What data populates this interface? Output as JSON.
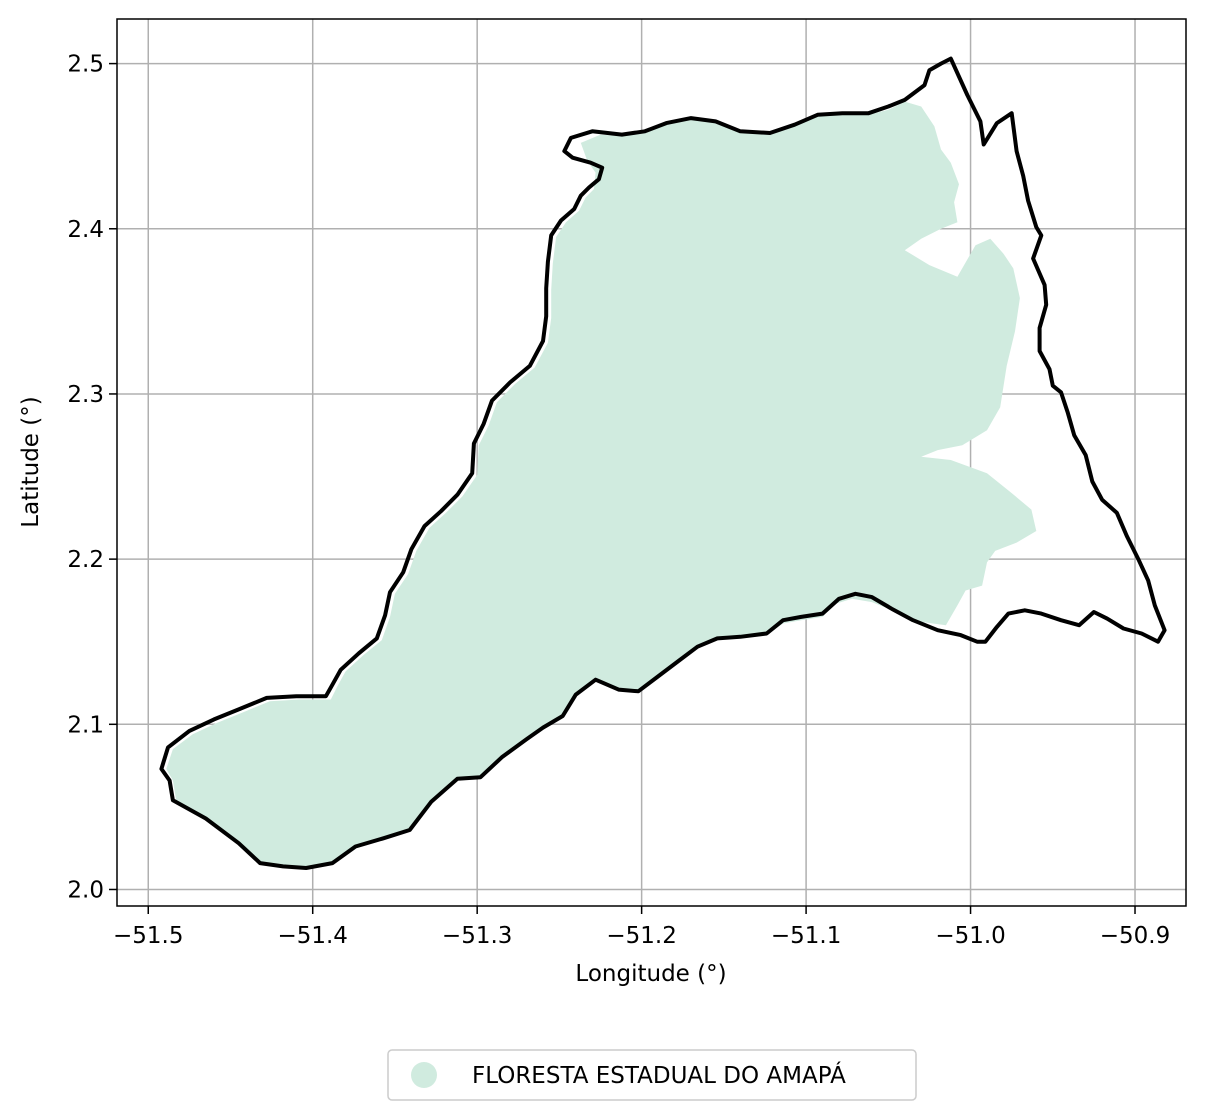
{
  "chart_data": {
    "type": "map",
    "xlabel": "Longitude (°)",
    "ylabel": "Latitude (°)",
    "xlim": [
      -51.519,
      -50.869
    ],
    "ylim": [
      1.99,
      2.527
    ],
    "x_ticks": [
      {
        "value": -51.5,
        "label": "−51.5"
      },
      {
        "value": -51.4,
        "label": "−51.4"
      },
      {
        "value": -51.3,
        "label": "−51.3"
      },
      {
        "value": -51.2,
        "label": "−51.2"
      },
      {
        "value": -51.1,
        "label": "−51.1"
      },
      {
        "value": -51.0,
        "label": "−51.0"
      },
      {
        "value": -50.9,
        "label": "−50.9"
      }
    ],
    "y_ticks": [
      {
        "value": 2.0,
        "label": "2.0"
      },
      {
        "value": 2.1,
        "label": "2.1"
      },
      {
        "value": 2.2,
        "label": "2.2"
      },
      {
        "value": 2.3,
        "label": "2.3"
      },
      {
        "value": 2.4,
        "label": "2.4"
      },
      {
        "value": 2.5,
        "label": "2.5"
      }
    ],
    "grid": true,
    "legend": {
      "placement": "bottom-center",
      "entries": [
        {
          "name": "FLORESTA ESTADUAL DO AMAPÁ",
          "color": "#d0ebdf"
        }
      ]
    },
    "boundary_color": "#000000",
    "fill_color": "#d0ebdf",
    "boundary": [
      [
        -51.243,
        2.455
      ],
      [
        -51.23,
        2.459
      ],
      [
        -51.212,
        2.457
      ],
      [
        -51.198,
        2.459
      ],
      [
        -51.185,
        2.464
      ],
      [
        -51.17,
        2.467
      ],
      [
        -51.155,
        2.465
      ],
      [
        -51.14,
        2.459
      ],
      [
        -51.122,
        2.458
      ],
      [
        -51.107,
        2.463
      ],
      [
        -51.093,
        2.469
      ],
      [
        -51.078,
        2.47
      ],
      [
        -51.062,
        2.47
      ],
      [
        -51.05,
        2.474
      ],
      [
        -51.04,
        2.478
      ],
      [
        -51.028,
        2.487
      ],
      [
        -51.025,
        2.496
      ],
      [
        -51.018,
        2.5
      ],
      [
        -51.012,
        2.503
      ],
      [
        -51.002,
        2.481
      ],
      [
        -50.994,
        2.465
      ],
      [
        -50.992,
        2.451
      ],
      [
        -50.984,
        2.464
      ],
      [
        -50.975,
        2.47
      ],
      [
        -50.972,
        2.447
      ],
      [
        -50.968,
        2.432
      ],
      [
        -50.965,
        2.417
      ],
      [
        -50.96,
        2.401
      ],
      [
        -50.957,
        2.396
      ],
      [
        -50.962,
        2.382
      ],
      [
        -50.955,
        2.366
      ],
      [
        -50.954,
        2.354
      ],
      [
        -50.958,
        2.34
      ],
      [
        -50.958,
        2.326
      ],
      [
        -50.952,
        2.315
      ],
      [
        -50.95,
        2.305
      ],
      [
        -50.945,
        2.301
      ],
      [
        -50.941,
        2.289
      ],
      [
        -50.937,
        2.275
      ],
      [
        -50.93,
        2.263
      ],
      [
        -50.926,
        2.247
      ],
      [
        -50.92,
        2.236
      ],
      [
        -50.911,
        2.228
      ],
      [
        -50.905,
        2.214
      ],
      [
        -50.898,
        2.2
      ],
      [
        -50.892,
        2.187
      ],
      [
        -50.888,
        2.172
      ],
      [
        -50.882,
        2.157
      ],
      [
        -50.886,
        2.15
      ],
      [
        -50.896,
        2.155
      ],
      [
        -50.907,
        2.158
      ],
      [
        -50.917,
        2.164
      ],
      [
        -50.925,
        2.168
      ],
      [
        -50.934,
        2.16
      ],
      [
        -50.945,
        2.163
      ],
      [
        -50.957,
        2.167
      ],
      [
        -50.967,
        2.169
      ],
      [
        -50.977,
        2.167
      ],
      [
        -50.984,
        2.159
      ],
      [
        -50.991,
        2.15
      ],
      [
        -50.996,
        2.15
      ],
      [
        -51.006,
        2.154
      ],
      [
        -51.02,
        2.157
      ],
      [
        -51.035,
        2.163
      ],
      [
        -51.048,
        2.17
      ],
      [
        -51.06,
        2.177
      ],
      [
        -51.07,
        2.179
      ],
      [
        -51.08,
        2.176
      ],
      [
        -51.09,
        2.167
      ],
      [
        -51.103,
        2.165
      ],
      [
        -51.114,
        2.163
      ],
      [
        -51.124,
        2.155
      ],
      [
        -51.14,
        2.153
      ],
      [
        -51.154,
        2.152
      ],
      [
        -51.166,
        2.147
      ],
      [
        -51.178,
        2.138
      ],
      [
        -51.19,
        2.129
      ],
      [
        -51.202,
        2.12
      ],
      [
        -51.214,
        2.121
      ],
      [
        -51.228,
        2.127
      ],
      [
        -51.24,
        2.118
      ],
      [
        -51.248,
        2.105
      ],
      [
        -51.26,
        2.098
      ],
      [
        -51.27,
        2.091
      ],
      [
        -51.285,
        2.08
      ],
      [
        -51.298,
        2.068
      ],
      [
        -51.312,
        2.067
      ],
      [
        -51.328,
        2.053
      ],
      [
        -51.341,
        2.036
      ],
      [
        -51.357,
        2.031
      ],
      [
        -51.374,
        2.026
      ],
      [
        -51.388,
        2.016
      ],
      [
        -51.404,
        2.013
      ],
      [
        -51.418,
        2.014
      ],
      [
        -51.432,
        2.016
      ],
      [
        -51.445,
        2.028
      ],
      [
        -51.465,
        2.043
      ],
      [
        -51.485,
        2.054
      ],
      [
        -51.487,
        2.066
      ],
      [
        -51.492,
        2.073
      ],
      [
        -51.488,
        2.086
      ],
      [
        -51.475,
        2.096
      ],
      [
        -51.46,
        2.103
      ],
      [
        -51.445,
        2.109
      ],
      [
        -51.428,
        2.116
      ],
      [
        -51.41,
        2.117
      ],
      [
        -51.392,
        2.117
      ],
      [
        -51.388,
        2.124
      ],
      [
        -51.383,
        2.133
      ],
      [
        -51.372,
        2.143
      ],
      [
        -51.361,
        2.152
      ],
      [
        -51.356,
        2.166
      ],
      [
        -51.353,
        2.18
      ],
      [
        -51.345,
        2.192
      ],
      [
        -51.34,
        2.206
      ],
      [
        -51.332,
        2.22
      ],
      [
        -51.322,
        2.229
      ],
      [
        -51.312,
        2.239
      ],
      [
        -51.303,
        2.252
      ],
      [
        -51.302,
        2.27
      ],
      [
        -51.296,
        2.282
      ],
      [
        -51.291,
        2.296
      ],
      [
        -51.28,
        2.307
      ],
      [
        -51.268,
        2.317
      ],
      [
        -51.26,
        2.332
      ],
      [
        -51.258,
        2.347
      ],
      [
        -51.258,
        2.364
      ],
      [
        -51.257,
        2.38
      ],
      [
        -51.255,
        2.396
      ],
      [
        -51.249,
        2.405
      ],
      [
        -51.241,
        2.412
      ],
      [
        -51.237,
        2.42
      ],
      [
        -51.232,
        2.425
      ],
      [
        -51.226,
        2.43
      ],
      [
        -51.224,
        2.437
      ],
      [
        -51.231,
        2.44
      ],
      [
        -51.242,
        2.443
      ],
      [
        -51.247,
        2.447
      ],
      [
        -51.243,
        2.455
      ]
    ],
    "forest_cover": [
      [
        -51.237,
        2.452
      ],
      [
        -51.225,
        2.457
      ],
      [
        -51.212,
        2.456
      ],
      [
        -51.198,
        2.458
      ],
      [
        -51.185,
        2.463
      ],
      [
        -51.17,
        2.466
      ],
      [
        -51.155,
        2.464
      ],
      [
        -51.14,
        2.458
      ],
      [
        -51.122,
        2.457
      ],
      [
        -51.107,
        2.462
      ],
      [
        -51.093,
        2.468
      ],
      [
        -51.078,
        2.469
      ],
      [
        -51.062,
        2.469
      ],
      [
        -51.05,
        2.472
      ],
      [
        -51.04,
        2.477
      ],
      [
        -51.03,
        2.474
      ],
      [
        -51.022,
        2.462
      ],
      [
        -51.018,
        2.448
      ],
      [
        -51.012,
        2.44
      ],
      [
        -51.007,
        2.427
      ],
      [
        -51.01,
        2.416
      ],
      [
        -51.008,
        2.404
      ],
      [
        -51.018,
        2.4
      ],
      [
        -51.03,
        2.394
      ],
      [
        -51.04,
        2.387
      ],
      [
        -51.025,
        2.378
      ],
      [
        -51.008,
        2.371
      ],
      [
        -50.997,
        2.39
      ],
      [
        -50.988,
        2.394
      ],
      [
        -50.98,
        2.385
      ],
      [
        -50.974,
        2.376
      ],
      [
        -50.97,
        2.358
      ],
      [
        -50.973,
        2.338
      ],
      [
        -50.978,
        2.317
      ],
      [
        -50.982,
        2.292
      ],
      [
        -50.99,
        2.278
      ],
      [
        -51.005,
        2.269
      ],
      [
        -51.02,
        2.266
      ],
      [
        -51.03,
        2.262
      ],
      [
        -51.012,
        2.26
      ],
      [
        -50.99,
        2.252
      ],
      [
        -50.975,
        2.24
      ],
      [
        -50.963,
        2.23
      ],
      [
        -50.96,
        2.217
      ],
      [
        -50.972,
        2.21
      ],
      [
        -50.985,
        2.205
      ],
      [
        -50.99,
        2.198
      ],
      [
        -50.993,
        2.184
      ],
      [
        -51.003,
        2.181
      ],
      [
        -51.008,
        2.172
      ],
      [
        -51.015,
        2.16
      ],
      [
        -51.03,
        2.162
      ],
      [
        -51.045,
        2.168
      ],
      [
        -51.06,
        2.174
      ],
      [
        -51.072,
        2.176
      ],
      [
        -51.082,
        2.173
      ],
      [
        -51.09,
        2.165
      ],
      [
        -51.103,
        2.163
      ],
      [
        -51.114,
        2.161
      ],
      [
        -51.124,
        2.154
      ],
      [
        -51.14,
        2.152
      ],
      [
        -51.154,
        2.151
      ],
      [
        -51.166,
        2.146
      ],
      [
        -51.178,
        2.137
      ],
      [
        -51.19,
        2.128
      ],
      [
        -51.202,
        2.119
      ],
      [
        -51.214,
        2.12
      ],
      [
        -51.228,
        2.126
      ],
      [
        -51.24,
        2.117
      ],
      [
        -51.248,
        2.104
      ],
      [
        -51.26,
        2.097
      ],
      [
        -51.27,
        2.09
      ],
      [
        -51.285,
        2.079
      ],
      [
        -51.298,
        2.067
      ],
      [
        -51.312,
        2.066
      ],
      [
        -51.328,
        2.052
      ],
      [
        -51.341,
        2.035
      ],
      [
        -51.357,
        2.03
      ],
      [
        -51.374,
        2.025
      ],
      [
        -51.388,
        2.015
      ],
      [
        -51.404,
        2.012
      ],
      [
        -51.418,
        2.013
      ],
      [
        -51.432,
        2.015
      ],
      [
        -51.445,
        2.027
      ],
      [
        -51.465,
        2.042
      ],
      [
        -51.483,
        2.054
      ],
      [
        -51.485,
        2.066
      ],
      [
        -51.489,
        2.073
      ],
      [
        -51.485,
        2.085
      ],
      [
        -51.473,
        2.094
      ],
      [
        -51.458,
        2.101
      ],
      [
        -51.443,
        2.107
      ],
      [
        -51.426,
        2.114
      ],
      [
        -51.408,
        2.115
      ],
      [
        -51.389,
        2.115
      ],
      [
        -51.385,
        2.123
      ],
      [
        -51.38,
        2.132
      ],
      [
        -51.369,
        2.142
      ],
      [
        -51.358,
        2.151
      ],
      [
        -51.353,
        2.165
      ],
      [
        -51.35,
        2.179
      ],
      [
        -51.342,
        2.191
      ],
      [
        -51.337,
        2.205
      ],
      [
        -51.329,
        2.219
      ],
      [
        -51.319,
        2.228
      ],
      [
        -51.309,
        2.238
      ],
      [
        -51.3,
        2.251
      ],
      [
        -51.299,
        2.269
      ],
      [
        -51.293,
        2.281
      ],
      [
        -51.288,
        2.295
      ],
      [
        -51.277,
        2.306
      ],
      [
        -51.265,
        2.316
      ],
      [
        -51.257,
        2.331
      ],
      [
        -51.255,
        2.346
      ],
      [
        -51.255,
        2.363
      ],
      [
        -51.254,
        2.379
      ],
      [
        -51.252,
        2.395
      ],
      [
        -51.246,
        2.404
      ],
      [
        -51.238,
        2.411
      ],
      [
        -51.234,
        2.419
      ],
      [
        -51.229,
        2.424
      ],
      [
        -51.228,
        2.434
      ],
      [
        -51.233,
        2.441
      ],
      [
        -51.237,
        2.452
      ]
    ]
  }
}
